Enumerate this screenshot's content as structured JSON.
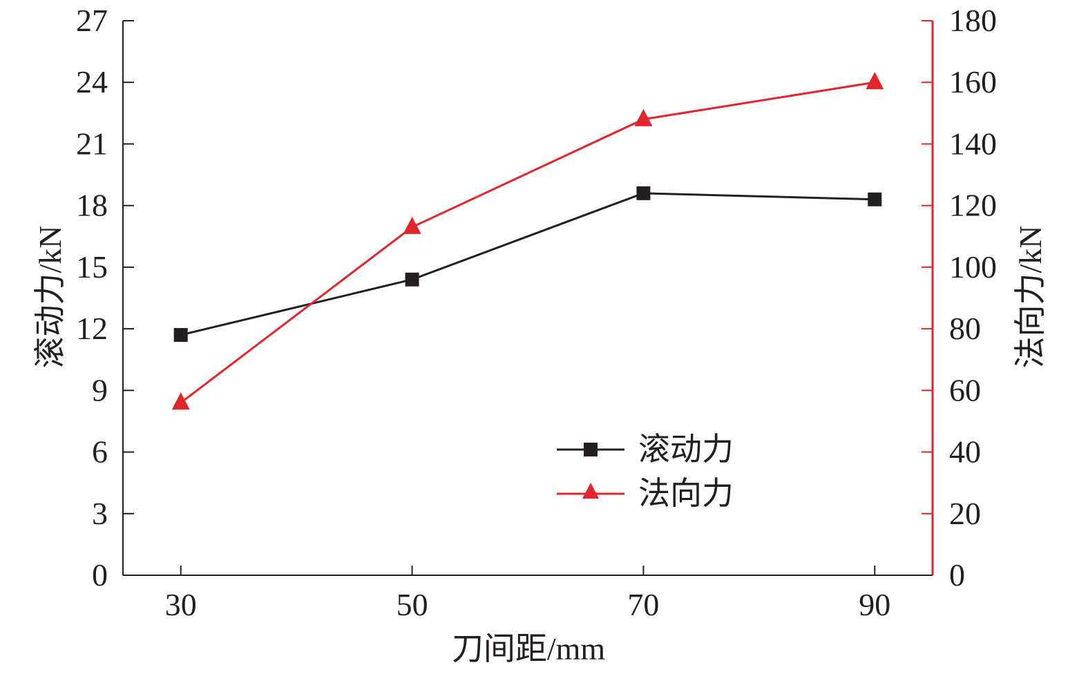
{
  "chart_data": {
    "type": "line",
    "x": [
      30,
      50,
      70,
      90
    ],
    "x_tick_labels": [
      "30",
      "50",
      "70",
      "90"
    ],
    "xlabel": "刀间距/mm",
    "xlim": [
      25,
      95
    ],
    "y_left": {
      "label": "滚动力/kN",
      "lim": [
        0,
        27
      ],
      "ticks": [
        0,
        3,
        6,
        9,
        12,
        15,
        18,
        21,
        24,
        27
      ],
      "tick_labels": [
        "0",
        "3",
        "6",
        "9",
        "12",
        "15",
        "18",
        "21",
        "24",
        "27"
      ],
      "color": "#231f20"
    },
    "y_right": {
      "label": "法向力/kN",
      "lim": [
        0,
        180
      ],
      "ticks": [
        0,
        20,
        40,
        60,
        80,
        100,
        120,
        140,
        160,
        180
      ],
      "tick_labels": [
        "0",
        "20",
        "40",
        "60",
        "80",
        "100",
        "120",
        "140",
        "160",
        "180"
      ],
      "color": "#e2242b"
    },
    "series": [
      {
        "name": "滚动力",
        "axis": "left",
        "marker": "square",
        "color": "#231f20",
        "values": [
          11.7,
          14.4,
          18.6,
          18.3
        ]
      },
      {
        "name": "法向力",
        "axis": "right",
        "marker": "triangle",
        "color": "#e2242b",
        "values": [
          56,
          113,
          148,
          160
        ]
      }
    ],
    "legend_position": "bottom-right",
    "grid": false
  }
}
